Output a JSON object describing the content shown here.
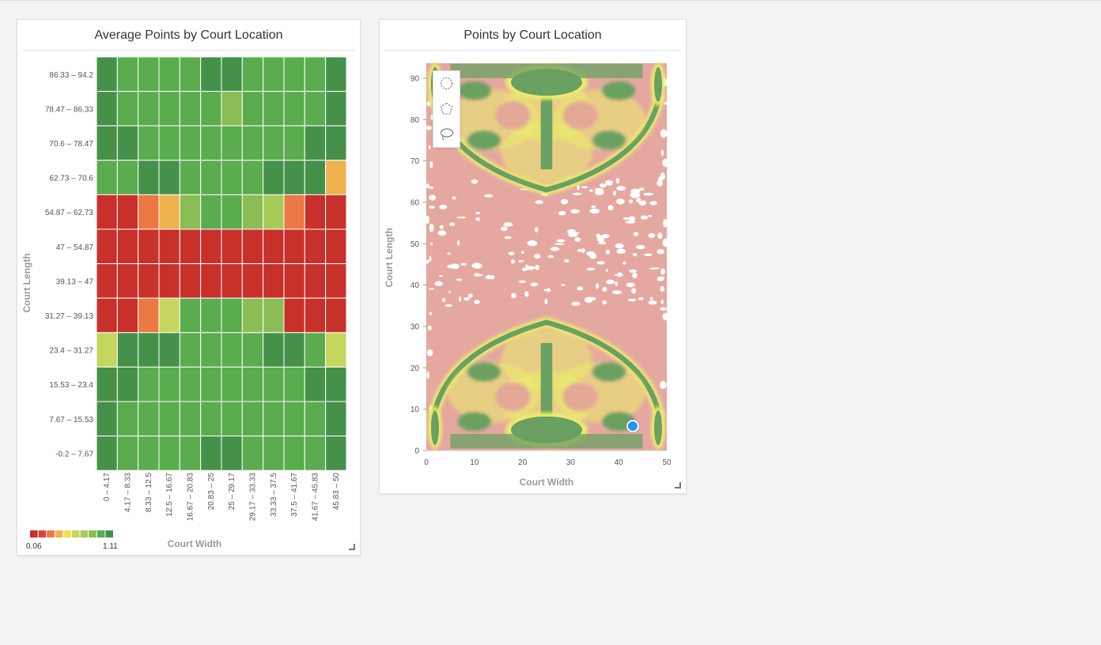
{
  "panels": {
    "left_title": "Average Points by Court Location",
    "right_title": "Points by Court Location"
  },
  "tools": [
    {
      "name": "circle-select-icon"
    },
    {
      "name": "polygon-select-icon"
    },
    {
      "name": "lasso-select-icon"
    }
  ],
  "chart_data": [
    {
      "type": "heatmap",
      "title": "Average Points by Court Location",
      "xlabel": "Court Width",
      "ylabel": "Court Length",
      "x_categories": [
        "0 – 4.17",
        "4.17 – 8.33",
        "8.33 – 12.5",
        "12.5 – 16.67",
        "16.67 – 20.83",
        "20.83 – 25",
        "25 – 29.17",
        "29.17 – 33.33",
        "33.33 – 37.5",
        "37.5 – 41.67",
        "41.67 – 45.83",
        "45.83 – 50"
      ],
      "y_categories": [
        "86.33 – 94.2",
        "78.47 – 86.33",
        "70.6 – 78.47",
        "62.73 – 70.6",
        "54.87 – 62.73",
        "47 – 54.87",
        "39.13 – 47",
        "31.27 – 39.13",
        "23.4 – 31.27",
        "15.53 – 23.4",
        "7.67 – 15.53",
        "-0.2 – 7.67"
      ],
      "values": [
        [
          1.11,
          0.9,
          0.9,
          0.9,
          0.9,
          1.11,
          1.11,
          0.9,
          0.9,
          0.9,
          0.9,
          1.11
        ],
        [
          1.11,
          0.9,
          0.9,
          0.9,
          0.9,
          0.9,
          0.88,
          0.9,
          0.9,
          0.9,
          0.9,
          1.11
        ],
        [
          1.03,
          1.03,
          0.9,
          0.9,
          0.9,
          0.9,
          0.95,
          0.9,
          0.9,
          0.9,
          1.03,
          1.03
        ],
        [
          0.95,
          0.95,
          1.03,
          1.06,
          0.95,
          0.97,
          0.95,
          0.95,
          1.05,
          1.05,
          1.03,
          0.45
        ],
        [
          0.1,
          0.08,
          0.3,
          0.45,
          0.88,
          0.95,
          0.95,
          0.88,
          0.7,
          0.3,
          0.08,
          0.08
        ],
        [
          0.07,
          0.07,
          0.07,
          0.07,
          0.07,
          0.07,
          0.15,
          0.07,
          0.07,
          0.07,
          0.07,
          0.07
        ],
        [
          0.07,
          0.07,
          0.07,
          0.07,
          0.07,
          0.07,
          0.07,
          0.07,
          0.07,
          0.07,
          0.07,
          0.07
        ],
        [
          0.08,
          0.12,
          0.3,
          0.65,
          0.95,
          0.95,
          0.95,
          0.88,
          0.88,
          0.12,
          0.12,
          0.06
        ],
        [
          0.65,
          1.03,
          1.03,
          1.05,
          0.95,
          0.97,
          0.95,
          0.95,
          1.03,
          1.05,
          0.95,
          0.65
        ],
        [
          1.03,
          1.03,
          0.9,
          0.9,
          0.9,
          0.9,
          0.9,
          0.9,
          0.9,
          0.9,
          1.03,
          1.03
        ],
        [
          1.11,
          0.9,
          0.9,
          0.9,
          0.9,
          0.9,
          0.9,
          0.9,
          0.9,
          0.9,
          0.9,
          1.03
        ],
        [
          1.11,
          0.9,
          0.9,
          0.9,
          0.9,
          1.11,
          1.11,
          0.9,
          0.9,
          0.9,
          0.9,
          1.11
        ]
      ],
      "color_scale": [
        "#c8302a",
        "#d9443a",
        "#ec7844",
        "#efb24f",
        "#ede15b",
        "#c5d65e",
        "#a7cb5b",
        "#8cbc55",
        "#5aac4e",
        "#45914a"
      ],
      "legend": {
        "min_label": "0.06",
        "max_label": "1.11",
        "position": "bottom-left"
      }
    },
    {
      "type": "scatter",
      "title": "Points by Court Location",
      "xlabel": "Court Width",
      "ylabel": "Court Length",
      "xlim": [
        0,
        50
      ],
      "ylim": [
        0,
        94
      ],
      "x_ticks": [
        "0",
        "10",
        "20",
        "30",
        "40",
        "50"
      ],
      "y_ticks": [
        "0",
        "10",
        "20",
        "30",
        "40",
        "50",
        "60",
        "70",
        "80",
        "90"
      ],
      "highlighted_point": {
        "x": 43,
        "y": 6
      },
      "colors": {
        "low": "#e4a39b",
        "mid": "#ecec6e",
        "high": "#6aa061",
        "point": "#2196f3"
      }
    }
  ]
}
